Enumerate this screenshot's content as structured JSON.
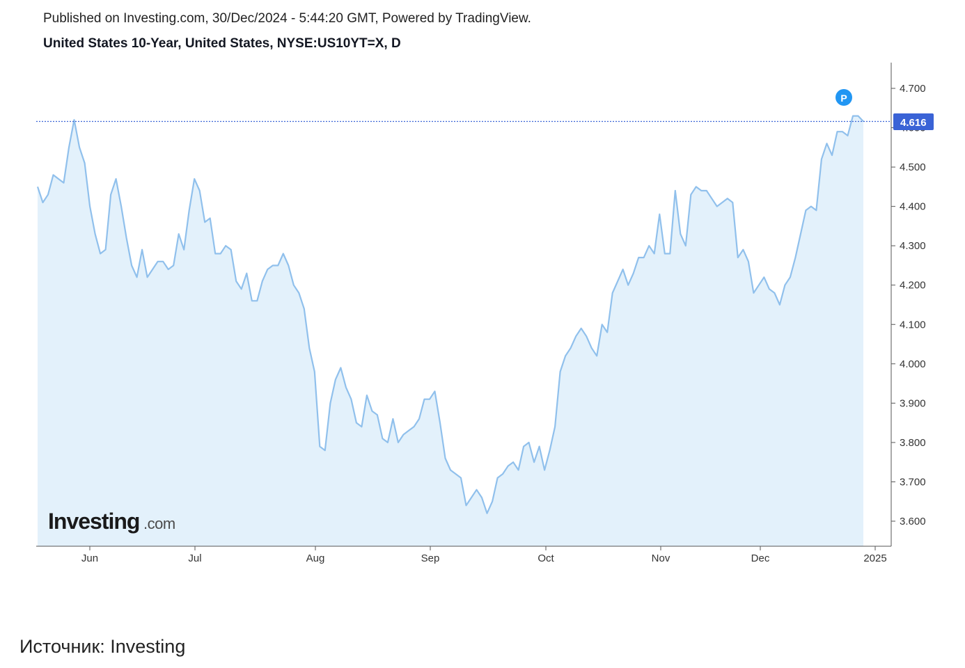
{
  "header": {
    "published": "Published on Investing.com, 30/Dec/2024 - 5:44:20 GMT, Powered by TradingView.",
    "subtitle": "United States 10-Year, United States, NYSE:US10YT=X, D"
  },
  "logo": {
    "main": "Investing",
    "suffix": ".com"
  },
  "marker": {
    "label": "P",
    "color": "#2196f3"
  },
  "source": "Источник: Investing",
  "colors": {
    "line": "#90c0ec",
    "fill": "#e3f1fb",
    "price_tag": "#3a63d6",
    "price_line": "#3a63d6"
  },
  "chart_data": {
    "type": "area",
    "x_tick_labels": [
      "Jun",
      "Jul",
      "Aug",
      "Sep",
      "Oct",
      "Nov",
      "Dec",
      "2025"
    ],
    "y_tick_labels": [
      "3.600",
      "3.700",
      "3.800",
      "3.900",
      "4.000",
      "4.100",
      "4.200",
      "4.300",
      "4.400",
      "4.500",
      "4.600",
      "4.700"
    ],
    "ylim": [
      3.535,
      4.76
    ],
    "last_price": "4.616",
    "last_value": 4.616,
    "grid": false,
    "values": [
      4.45,
      4.41,
      4.43,
      4.48,
      4.47,
      4.46,
      4.55,
      4.62,
      4.55,
      4.51,
      4.4,
      4.33,
      4.28,
      4.29,
      4.43,
      4.47,
      4.4,
      4.32,
      4.25,
      4.22,
      4.29,
      4.22,
      4.24,
      4.26,
      4.26,
      4.24,
      4.25,
      4.33,
      4.29,
      4.39,
      4.47,
      4.44,
      4.36,
      4.37,
      4.28,
      4.28,
      4.3,
      4.29,
      4.21,
      4.19,
      4.23,
      4.16,
      4.16,
      4.21,
      4.24,
      4.25,
      4.25,
      4.28,
      4.25,
      4.2,
      4.18,
      4.14,
      4.04,
      3.98,
      3.79,
      3.78,
      3.9,
      3.96,
      3.99,
      3.94,
      3.91,
      3.85,
      3.84,
      3.92,
      3.88,
      3.87,
      3.81,
      3.8,
      3.86,
      3.8,
      3.82,
      3.83,
      3.84,
      3.86,
      3.91,
      3.91,
      3.93,
      3.85,
      3.76,
      3.73,
      3.72,
      3.71,
      3.64,
      3.66,
      3.68,
      3.66,
      3.62,
      3.65,
      3.71,
      3.72,
      3.74,
      3.75,
      3.73,
      3.79,
      3.8,
      3.75,
      3.79,
      3.73,
      3.78,
      3.84,
      3.98,
      4.02,
      4.04,
      4.07,
      4.09,
      4.07,
      4.04,
      4.02,
      4.1,
      4.08,
      4.18,
      4.21,
      4.24,
      4.2,
      4.23,
      4.27,
      4.27,
      4.3,
      4.28,
      4.38,
      4.28,
      4.28,
      4.44,
      4.33,
      4.3,
      4.43,
      4.45,
      4.44,
      4.44,
      4.42,
      4.4,
      4.41,
      4.42,
      4.41,
      4.27,
      4.29,
      4.26,
      4.18,
      4.2,
      4.22,
      4.19,
      4.18,
      4.15,
      4.2,
      4.22,
      4.27,
      4.33,
      4.39,
      4.4,
      4.39,
      4.52,
      4.56,
      4.53,
      4.59,
      4.59,
      4.58,
      4.63,
      4.63,
      4.616
    ]
  }
}
